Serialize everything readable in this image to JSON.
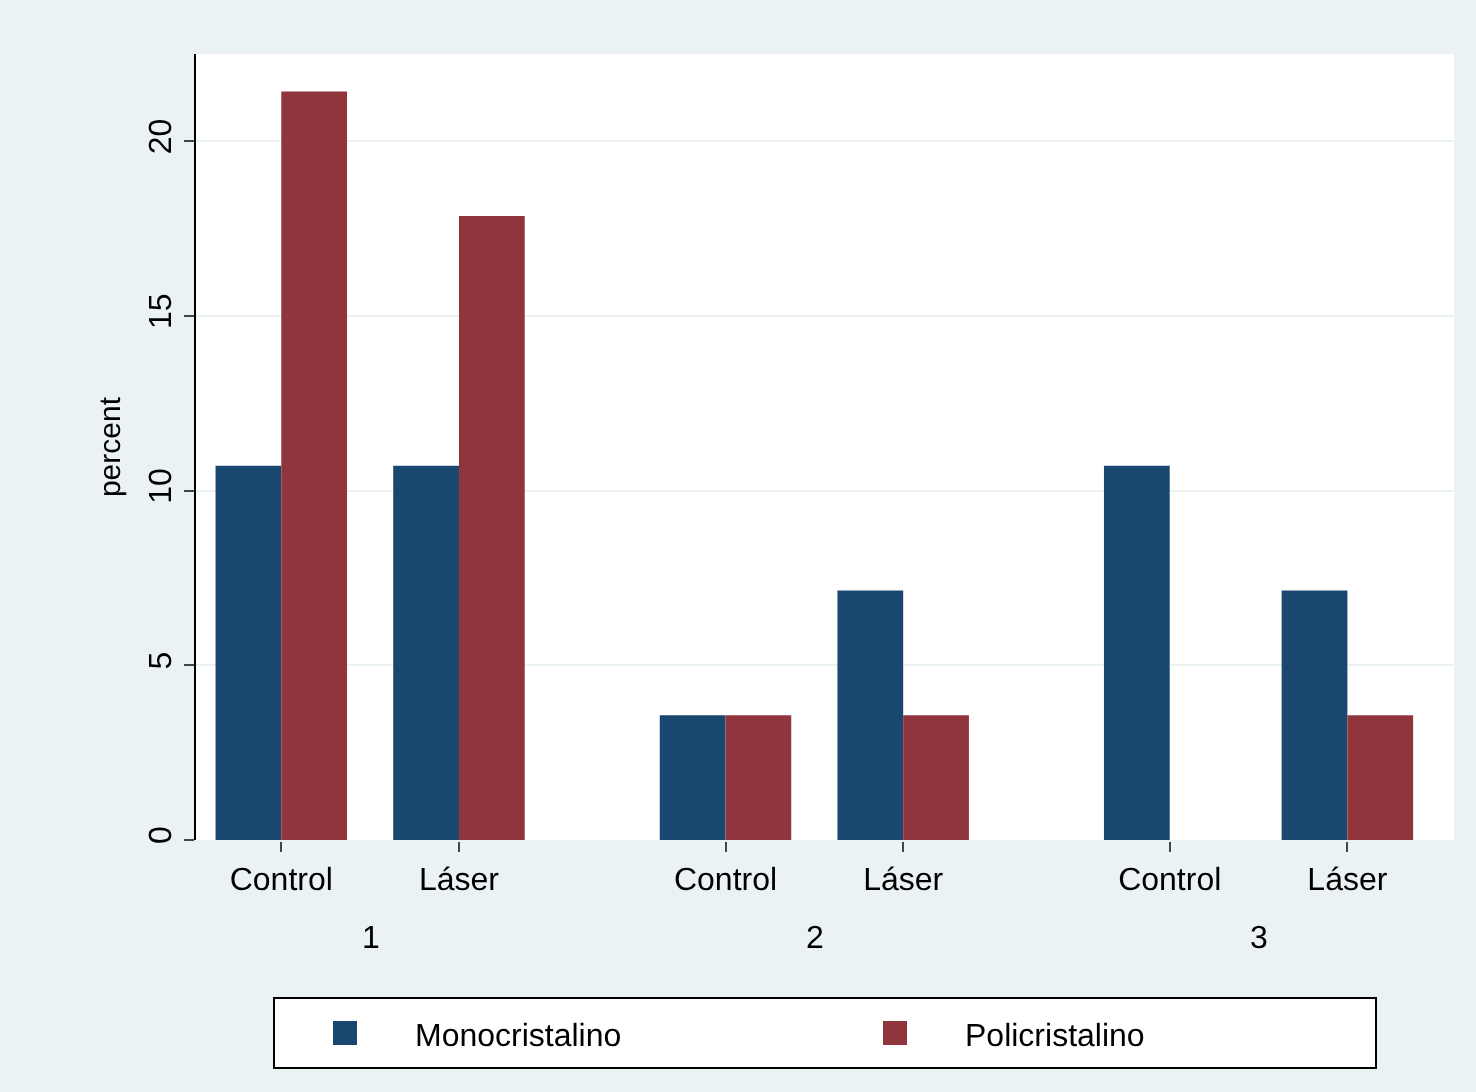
{
  "chart_data": {
    "type": "bar",
    "ylabel": "percent",
    "categories": [
      "Control",
      "Láser",
      "Control",
      "Láser",
      "Control",
      "Láser"
    ],
    "annotations": [
      "1",
      "2",
      "3"
    ],
    "series": [
      {
        "name": "Monocristalino",
        "color": "#1a476f",
        "values": [
          10.71,
          10.71,
          3.57,
          7.14,
          10.71,
          7.14
        ]
      },
      {
        "name": "Policristalino",
        "color": "#90353b",
        "values": [
          21.43,
          17.86,
          3.57,
          3.57,
          0,
          3.57
        ]
      }
    ],
    "ylim": [
      0,
      22.5
    ],
    "yticks": [
      0,
      5,
      10,
      15,
      20
    ],
    "grid": "y",
    "legend": "bottom"
  }
}
